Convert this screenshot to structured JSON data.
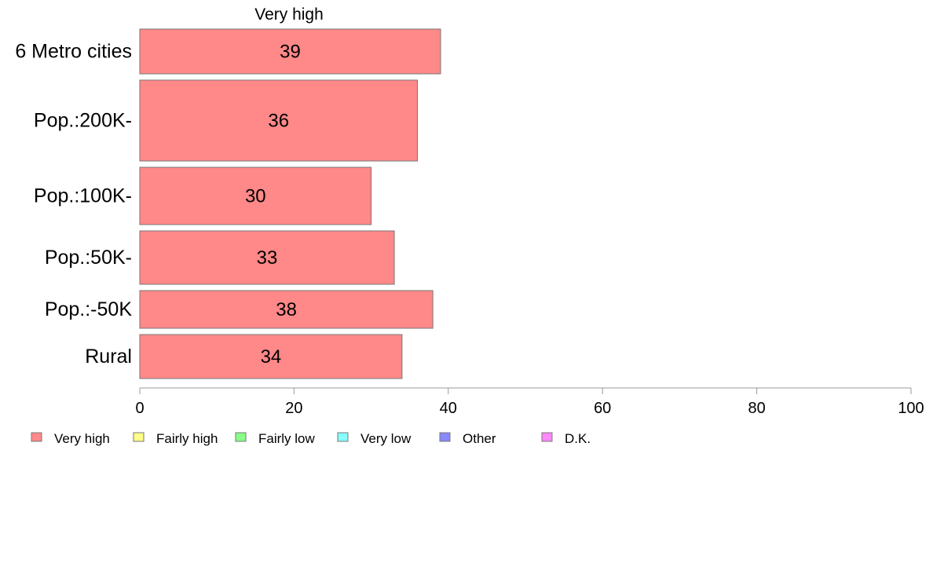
{
  "chart_data": {
    "type": "bar",
    "orientation": "horizontal",
    "title": "Very high",
    "categories": [
      "6 Metro cities",
      "Pop.:200K-",
      "Pop.:100K-",
      "Pop.:50K-",
      "Pop.:-50K",
      "Rural"
    ],
    "series": [
      {
        "name": "Very high",
        "color": "#ff8888",
        "values": [
          39,
          36,
          30,
          33,
          38,
          34
        ]
      }
    ],
    "value_labels": [
      "39",
      "36",
      "30",
      "33",
      "38",
      "34"
    ],
    "xlim": [
      0,
      100
    ],
    "xticks": [
      0,
      20,
      40,
      60,
      80,
      100
    ],
    "xtick_labels": [
      "0",
      "20",
      "40",
      "60",
      "80",
      "100"
    ],
    "grid": false,
    "legend_position": "bottom",
    "legend": [
      {
        "label": "Very high",
        "color": "#ff8888"
      },
      {
        "label": "Fairly high",
        "color": "#ffff88"
      },
      {
        "label": "Fairly low",
        "color": "#88ff88"
      },
      {
        "label": "Very low",
        "color": "#88ffff"
      },
      {
        "label": "Other",
        "color": "#8888ff"
      },
      {
        "label": "D.K.",
        "color": "#ff88ff"
      }
    ]
  }
}
